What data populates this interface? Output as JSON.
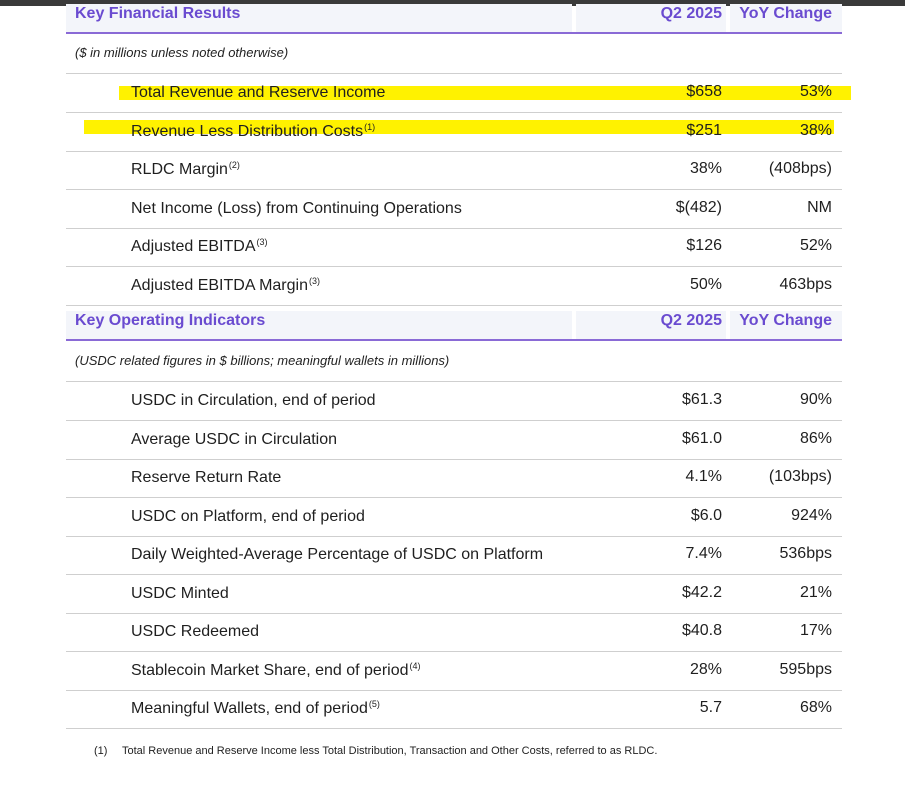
{
  "financial": {
    "title": "Key Financial Results",
    "col_period": "Q2 2025",
    "col_change": "YoY Change",
    "note": "($ in millions unless noted otherwise)",
    "rows": [
      {
        "label": "Total Revenue and Reserve Income",
        "sup": "",
        "value": "$658",
        "change": "53%",
        "highlighted": true
      },
      {
        "label": "Revenue Less Distribution Costs",
        "sup": "(1)",
        "value": "$251",
        "change": "38%",
        "highlighted": true
      },
      {
        "label": "RLDC Margin",
        "sup": "(2)",
        "value": "38%",
        "change": "(408bps)",
        "highlighted": false
      },
      {
        "label": "Net Income (Loss) from Continuing Operations",
        "sup": "",
        "value": "$(482)",
        "change": "NM",
        "highlighted": false
      },
      {
        "label": "Adjusted EBITDA",
        "sup": "(3)",
        "value": "$126",
        "change": "52%",
        "highlighted": false
      },
      {
        "label": "Adjusted EBITDA Margin",
        "sup": "(3)",
        "value": "50%",
        "change": "463bps",
        "highlighted": false
      }
    ]
  },
  "operating": {
    "title": "Key Operating Indicators",
    "col_period": "Q2 2025",
    "col_change": "YoY Change",
    "note": "(USDC related figures in $ billions; meaningful wallets in millions)",
    "rows": [
      {
        "label": "USDC in Circulation, end of period",
        "sup": "",
        "value": "$61.3",
        "change": "90%"
      },
      {
        "label": "Average USDC in Circulation",
        "sup": "",
        "value": "$61.0",
        "change": "86%"
      },
      {
        "label": "Reserve Return Rate",
        "sup": "",
        "value": "4.1%",
        "change": "(103bps)"
      },
      {
        "label": "USDC on Platform, end of period",
        "sup": "",
        "value": "$6.0",
        "change": "924%"
      },
      {
        "label": "Daily Weighted-Average Percentage of USDC on Platform",
        "sup": "",
        "value": "7.4%",
        "change": "536bps"
      },
      {
        "label": "USDC Minted",
        "sup": "",
        "value": "$42.2",
        "change": "21%"
      },
      {
        "label": "USDC Redeemed",
        "sup": "",
        "value": "$40.8",
        "change": "17%"
      },
      {
        "label": "Stablecoin Market Share, end of period",
        "sup": "(4)",
        "value": "28%",
        "change": "595bps"
      },
      {
        "label": "Meaningful Wallets, end of period",
        "sup": "(5)",
        "value": "5.7",
        "change": "68%"
      }
    ]
  },
  "footnote": {
    "number": "(1)",
    "text": "Total Revenue and Reserve Income less Total Distribution, Transaction and Other Costs, referred to as RLDC."
  },
  "colors": {
    "accent": "#6a4bd0",
    "highlight": "#fff200",
    "header_bg": "#f3f5fa"
  }
}
